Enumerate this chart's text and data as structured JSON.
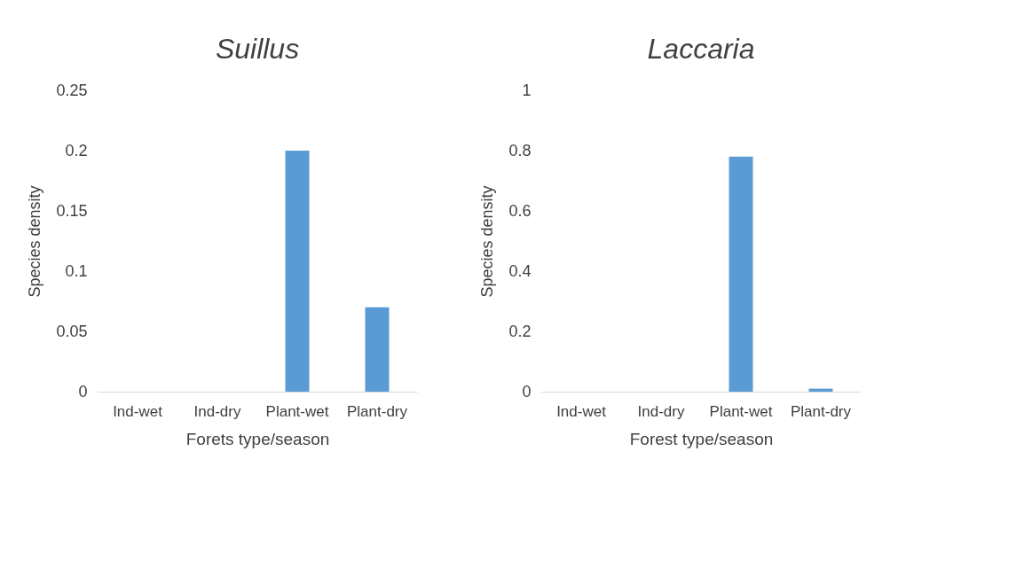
{
  "chart_data": [
    {
      "type": "bar",
      "title": "Suillus",
      "xlabel": "Forets type/season",
      "ylabel": "Species density",
      "categories": [
        "Ind-wet",
        "Ind-dry",
        "Plant-wet",
        "Plant-dry"
      ],
      "values": [
        0,
        0,
        0.2,
        0.07
      ],
      "color": "#5b9bd5",
      "ylim": [
        0,
        0.25
      ],
      "yticks": [
        0,
        0.05,
        0.1,
        0.15,
        0.2,
        0.25
      ],
      "grid": false
    },
    {
      "type": "bar",
      "title": "Laccaria",
      "xlabel": "Forest type/season",
      "ylabel": "Species density",
      "categories": [
        "Ind-wet",
        "Ind-dry",
        "Plant-wet",
        "Plant-dry"
      ],
      "values": [
        0,
        0,
        0.78,
        0.01
      ],
      "color": "#5b9bd5",
      "ylim": [
        0,
        1
      ],
      "yticks": [
        0,
        0.2,
        0.4,
        0.6,
        0.8,
        1
      ],
      "grid": false
    }
  ]
}
